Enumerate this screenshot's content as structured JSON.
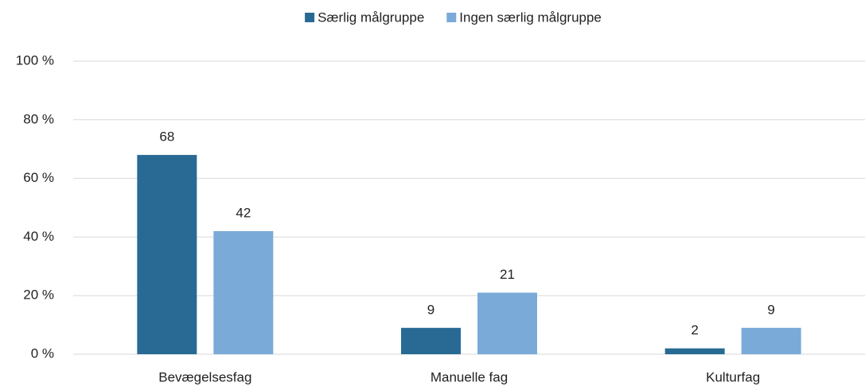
{
  "chart_data": {
    "type": "bar",
    "categories": [
      "Bevægelsesfag",
      "Manuelle fag",
      "Kulturfag"
    ],
    "series": [
      {
        "name": "Særlig målgruppe",
        "color": "#286a94",
        "values": [
          68,
          9,
          2
        ]
      },
      {
        "name": "Ingen særlig målgruppe",
        "color": "#7aaad8",
        "values": [
          42,
          21,
          9
        ]
      }
    ],
    "ylim": [
      0,
      100
    ],
    "yticks": [
      {
        "value": 0,
        "label": "0 %"
      },
      {
        "value": 20,
        "label": "20 %"
      },
      {
        "value": 40,
        "label": "40 %"
      },
      {
        "value": 60,
        "label": "60 %"
      },
      {
        "value": 80,
        "label": "80 %"
      },
      {
        "value": 100,
        "label": "100 %"
      }
    ],
    "grid": true,
    "legend": "top"
  }
}
